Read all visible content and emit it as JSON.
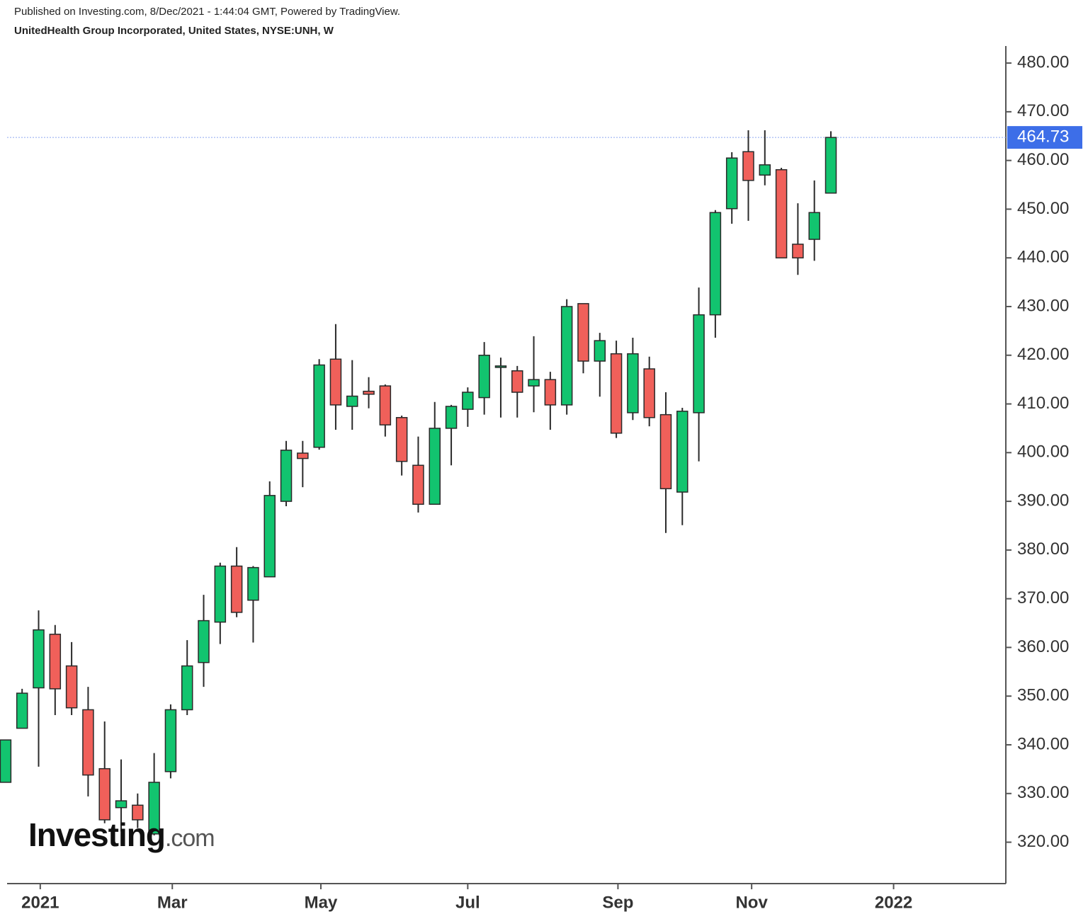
{
  "header": {
    "published": "Published on Investing.com, 8/Dec/2021 - 1:44:04 GMT, Powered by TradingView.",
    "instrument": "UnitedHealth Group Incorporated, United States, NYSE:UNH, W"
  },
  "logo": {
    "name": "Investing",
    "suffix": ".com"
  },
  "chart_data": {
    "type": "candlestick",
    "up_color": "#12c46f",
    "down_color": "#f0605a",
    "outline_color": "#2a2a2a",
    "open": [
      332.3,
      343.4,
      351.7,
      362.7,
      356.2,
      347.2,
      335.1,
      327.1,
      327.6,
      321.7,
      334.5,
      347.2,
      356.9,
      365.2,
      376.7,
      369.7,
      374.5,
      390.0,
      399.9,
      401.1,
      419.2,
      409.5,
      412.6,
      413.7,
      407.2,
      397.4,
      389.4,
      405.0,
      408.9,
      411.3,
      417.5,
      416.8,
      413.7,
      415.0,
      409.8,
      430.6,
      418.8,
      420.3,
      408.2,
      417.2,
      407.8,
      391.9,
      408.2,
      428.3,
      450.1,
      461.8,
      457.0,
      458.1,
      442.8,
      443.8,
      453.3
    ],
    "high": [
      341.0,
      351.5,
      367.6,
      364.6,
      361.1,
      351.9,
      344.8,
      337.0,
      330.0,
      338.3,
      348.3,
      361.5,
      370.8,
      377.4,
      380.6,
      376.7,
      394.1,
      402.4,
      402.4,
      419.2,
      426.4,
      419.0,
      415.5,
      414.0,
      407.6,
      403.3,
      410.4,
      409.8,
      413.4,
      422.7,
      419.5,
      417.8,
      423.9,
      416.6,
      431.5,
      430.6,
      424.6,
      423.0,
      423.6,
      419.7,
      412.4,
      409.2,
      433.9,
      449.8,
      461.7,
      466.2,
      466.2,
      458.5,
      451.2,
      455.9,
      466.0
    ],
    "low": [
      332.3,
      343.4,
      335.5,
      346.1,
      346.1,
      329.4,
      323.9,
      322.2,
      322.9,
      321.4,
      333.1,
      346.1,
      351.9,
      360.7,
      366.2,
      361.0,
      374.5,
      389.0,
      392.9,
      400.6,
      404.7,
      404.7,
      409.1,
      403.3,
      395.3,
      387.7,
      389.4,
      397.4,
      405.3,
      407.8,
      407.2,
      407.2,
      408.3,
      404.7,
      407.8,
      416.3,
      411.5,
      403.0,
      406.7,
      405.4,
      383.5,
      385.1,
      398.2,
      423.6,
      447.0,
      447.6,
      454.9,
      440.0,
      436.5,
      439.4,
      453.3
    ],
    "close": [
      341.0,
      350.6,
      363.6,
      351.5,
      347.6,
      333.8,
      324.6,
      328.5,
      324.6,
      332.3,
      347.2,
      356.2,
      365.5,
      376.7,
      367.2,
      376.4,
      391.2,
      400.5,
      398.8,
      418.0,
      409.8,
      411.6,
      412.0,
      405.7,
      398.2,
      389.4,
      405.0,
      409.5,
      412.4,
      420.0,
      417.8,
      412.4,
      415.0,
      409.8,
      430.0,
      418.8,
      423.0,
      404.0,
      420.3,
      407.2,
      392.6,
      408.5,
      428.3,
      449.3,
      460.5,
      455.9,
      459.1,
      440.0,
      440.0,
      449.3,
      464.73
    ],
    "last_price": 464.73,
    "last_price_color": "#3d6ee8",
    "xlim": [
      0.09,
      60.6
    ],
    "xticks": [
      {
        "value": 2.1,
        "label": "2021"
      },
      {
        "value": 10.1,
        "label": "Mar"
      },
      {
        "value": 19.1,
        "label": "May"
      },
      {
        "value": 28.0,
        "label": "Jul"
      },
      {
        "value": 37.1,
        "label": "Sep"
      },
      {
        "value": 45.2,
        "label": "Nov"
      },
      {
        "value": 53.8,
        "label": "2022"
      }
    ],
    "ylim": [
      311.5,
      483.5
    ],
    "yticks": [
      {
        "value": 320,
        "label": "320.00"
      },
      {
        "value": 330,
        "label": "330.00"
      },
      {
        "value": 340,
        "label": "340.00"
      },
      {
        "value": 350,
        "label": "350.00"
      },
      {
        "value": 360,
        "label": "360.00"
      },
      {
        "value": 370,
        "label": "370.00"
      },
      {
        "value": 380,
        "label": "380.00"
      },
      {
        "value": 390,
        "label": "390.00"
      },
      {
        "value": 400,
        "label": "400.00"
      },
      {
        "value": 410,
        "label": "410.00"
      },
      {
        "value": 420,
        "label": "420.00"
      },
      {
        "value": 430,
        "label": "430.00"
      },
      {
        "value": 440,
        "label": "440.00"
      },
      {
        "value": 450,
        "label": "450.00"
      },
      {
        "value": 460,
        "label": "460.00"
      },
      {
        "value": 470,
        "label": "470.00"
      },
      {
        "value": 480,
        "label": "480.00"
      }
    ]
  }
}
